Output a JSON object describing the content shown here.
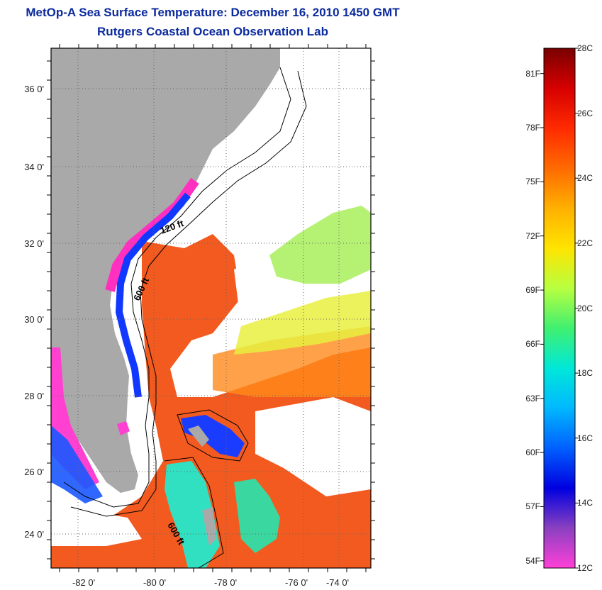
{
  "title": "MetOp-A Sea Surface Temperature:  December 16, 2010 1450 GMT",
  "subtitle": "Rutgers Coastal Ocean Observation Lab",
  "map": {
    "lon_labels": [
      "-82 0'",
      "-80 0'",
      "-78 0'",
      "-76 0'",
      "-74 0'"
    ],
    "lat_labels": [
      "36 0'",
      "34 0'",
      "32 0'",
      "30 0'",
      "28 0'",
      "26 0'",
      "24 0'"
    ],
    "contour_labels": [
      "120 ft",
      "600 ft",
      "600 ft"
    ],
    "colors": {
      "land": "#a8a8a8",
      "warm": "#f25a1e",
      "cool": "#ff30c0",
      "frame": "#000000"
    }
  },
  "colorbar": {
    "celsius": [
      "28C",
      "26C",
      "24C",
      "22C",
      "20C",
      "18C",
      "16C",
      "14C",
      "12C"
    ],
    "fahrenheit": [
      "81F",
      "78F",
      "75F",
      "72F",
      "69F",
      "66F",
      "63F",
      "60F",
      "57F",
      "54F"
    ],
    "stops": [
      "#7a0000",
      "#d60000",
      "#ff2a00",
      "#ff6a00",
      "#ffb000",
      "#ffe400",
      "#b8ff40",
      "#40f070",
      "#00e8d8",
      "#00b8ff",
      "#0060ff",
      "#0000e0",
      "#8a40c0",
      "#ff40d8"
    ]
  }
}
